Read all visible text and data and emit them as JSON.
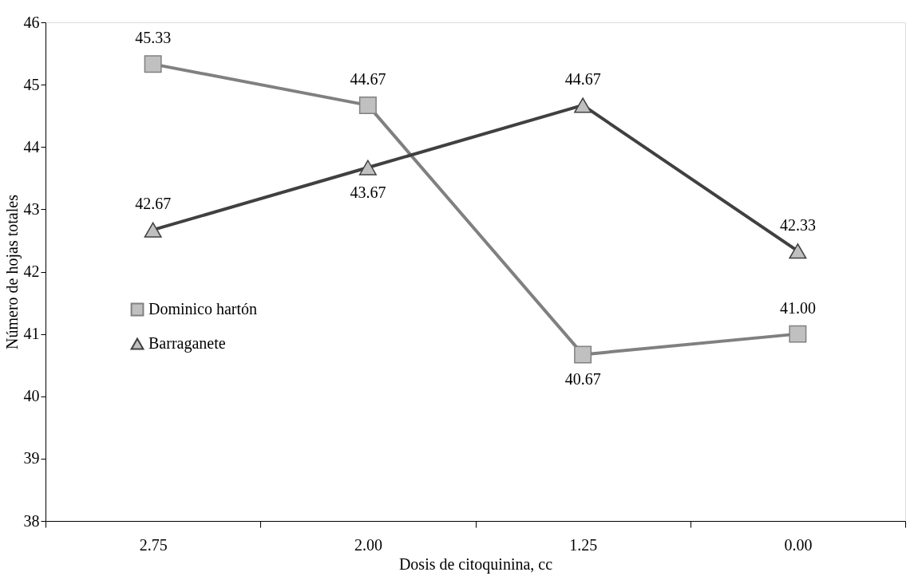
{
  "chart_data": {
    "type": "line",
    "xlabel": "Dosis de citoquinina, cc",
    "ylabel": "Número de hojas totales",
    "categories": [
      "2.75",
      "2.00",
      "1.25",
      "0.00"
    ],
    "series": [
      {
        "name": "Dominico hartón",
        "color": "#808080",
        "marker": "square",
        "values": [
          45.33,
          44.67,
          40.67,
          41.0
        ],
        "value_labels": [
          "45.33",
          "44.67",
          "40.67",
          "41.00"
        ]
      },
      {
        "name": "Barraganete",
        "color": "#404040",
        "marker": "triangle",
        "values": [
          42.67,
          43.67,
          44.67,
          42.33
        ],
        "value_labels": [
          "42.67",
          "43.67",
          "44.67",
          "42.33"
        ]
      }
    ],
    "ylim": [
      38,
      46
    ],
    "yticks": [
      38,
      39,
      40,
      41,
      42,
      43,
      44,
      45,
      46
    ],
    "grid": false,
    "legend": "left",
    "line_style": "solid"
  }
}
